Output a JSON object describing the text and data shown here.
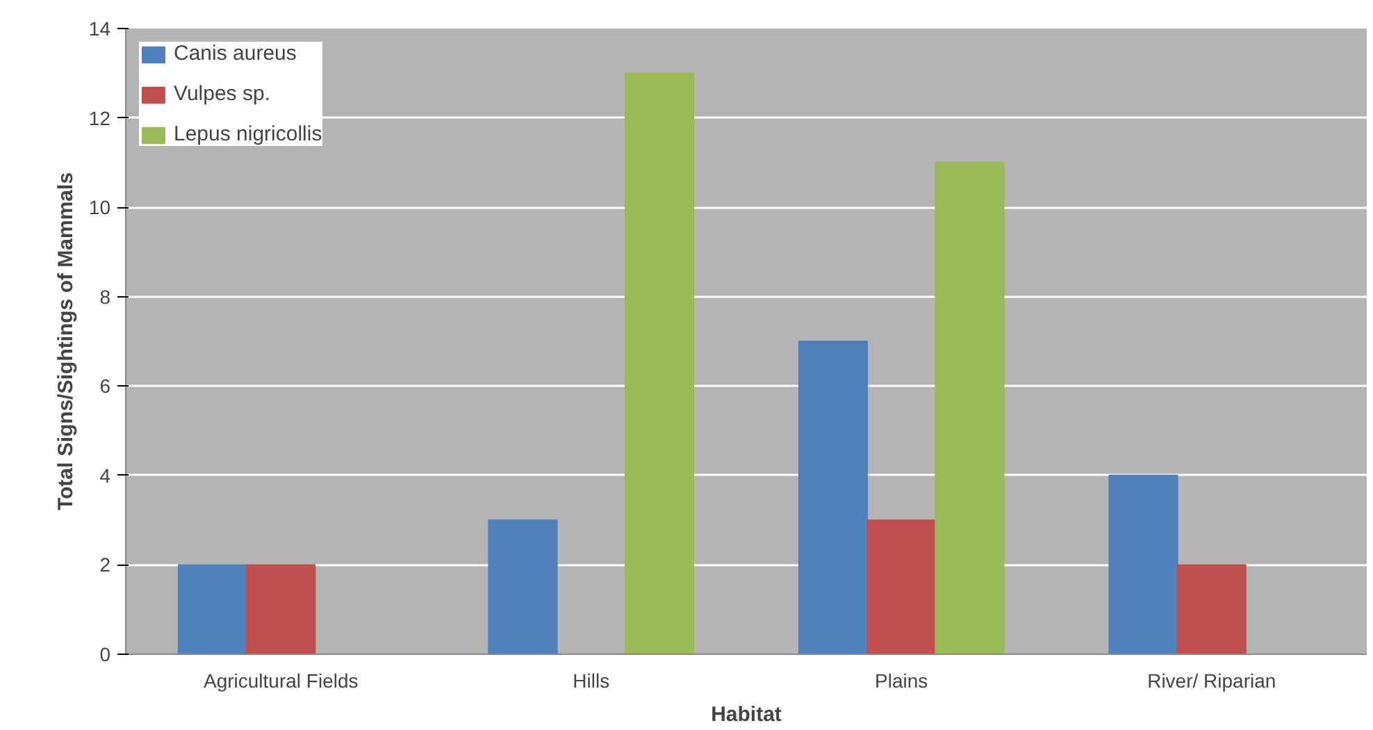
{
  "chart_data": {
    "type": "bar",
    "xlabel": "Habitat",
    "ylabel": "Total Signs/Sightings of Mammals",
    "categories": [
      "Agricultural Fields",
      "Hills",
      "Plains",
      "River/ Riparian"
    ],
    "series": [
      {
        "name": "Canis aureus",
        "color": "#4f81bd",
        "values": [
          2,
          3,
          7,
          4
        ]
      },
      {
        "name": "Vulpes sp.",
        "color": "#c0504d",
        "values": [
          2,
          0,
          3,
          2
        ]
      },
      {
        "name": "Lepus nigricollis",
        "color": "#9bbb59",
        "values": [
          0,
          13,
          11,
          0
        ]
      }
    ],
    "ylim": [
      0,
      14
    ],
    "yticks": [
      0,
      2,
      4,
      6,
      8,
      10,
      12,
      14
    ],
    "grid": "y",
    "legend": "top left"
  }
}
